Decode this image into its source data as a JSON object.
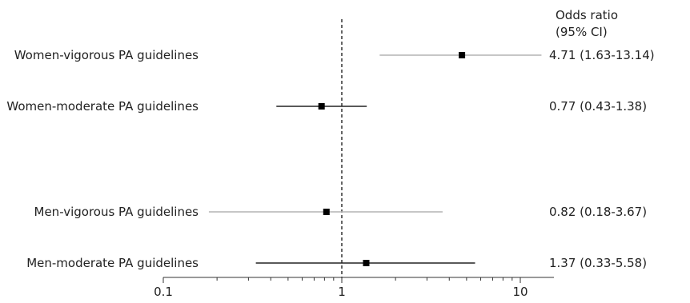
{
  "chart_data": {
    "type": "forest",
    "header_line1": "Odds ratio",
    "header_line2": "(95% CI)",
    "xscale": "log",
    "xlim": [
      0.1,
      15
    ],
    "xticks": [
      0.1,
      1,
      10
    ],
    "xtick_labels": [
      "0.1",
      "1",
      "10"
    ],
    "reference_line": 1,
    "grid": false,
    "rows": [
      {
        "label": "Women-vigorous PA guidelines",
        "or": 4.71,
        "lo": 1.63,
        "hi": 13.14,
        "ci_text": "4.71 (1.63-13.14)",
        "line_color": "#b3b3b3"
      },
      {
        "label": "Women-moderate PA guidelines",
        "or": 0.77,
        "lo": 0.43,
        "hi": 1.38,
        "ci_text": "0.77 (0.43-1.38)",
        "line_color": "#222222"
      },
      {
        "label": "Men-vigorous PA guidelines",
        "or": 0.82,
        "lo": 0.18,
        "hi": 3.67,
        "ci_text": "0.82 (0.18-3.67)",
        "line_color": "#b3b3b3"
      },
      {
        "label": "Men-moderate PA guidelines",
        "or": 1.37,
        "lo": 0.33,
        "hi": 5.58,
        "ci_text": "1.37 (0.33-5.58)",
        "line_color": "#222222"
      }
    ]
  }
}
